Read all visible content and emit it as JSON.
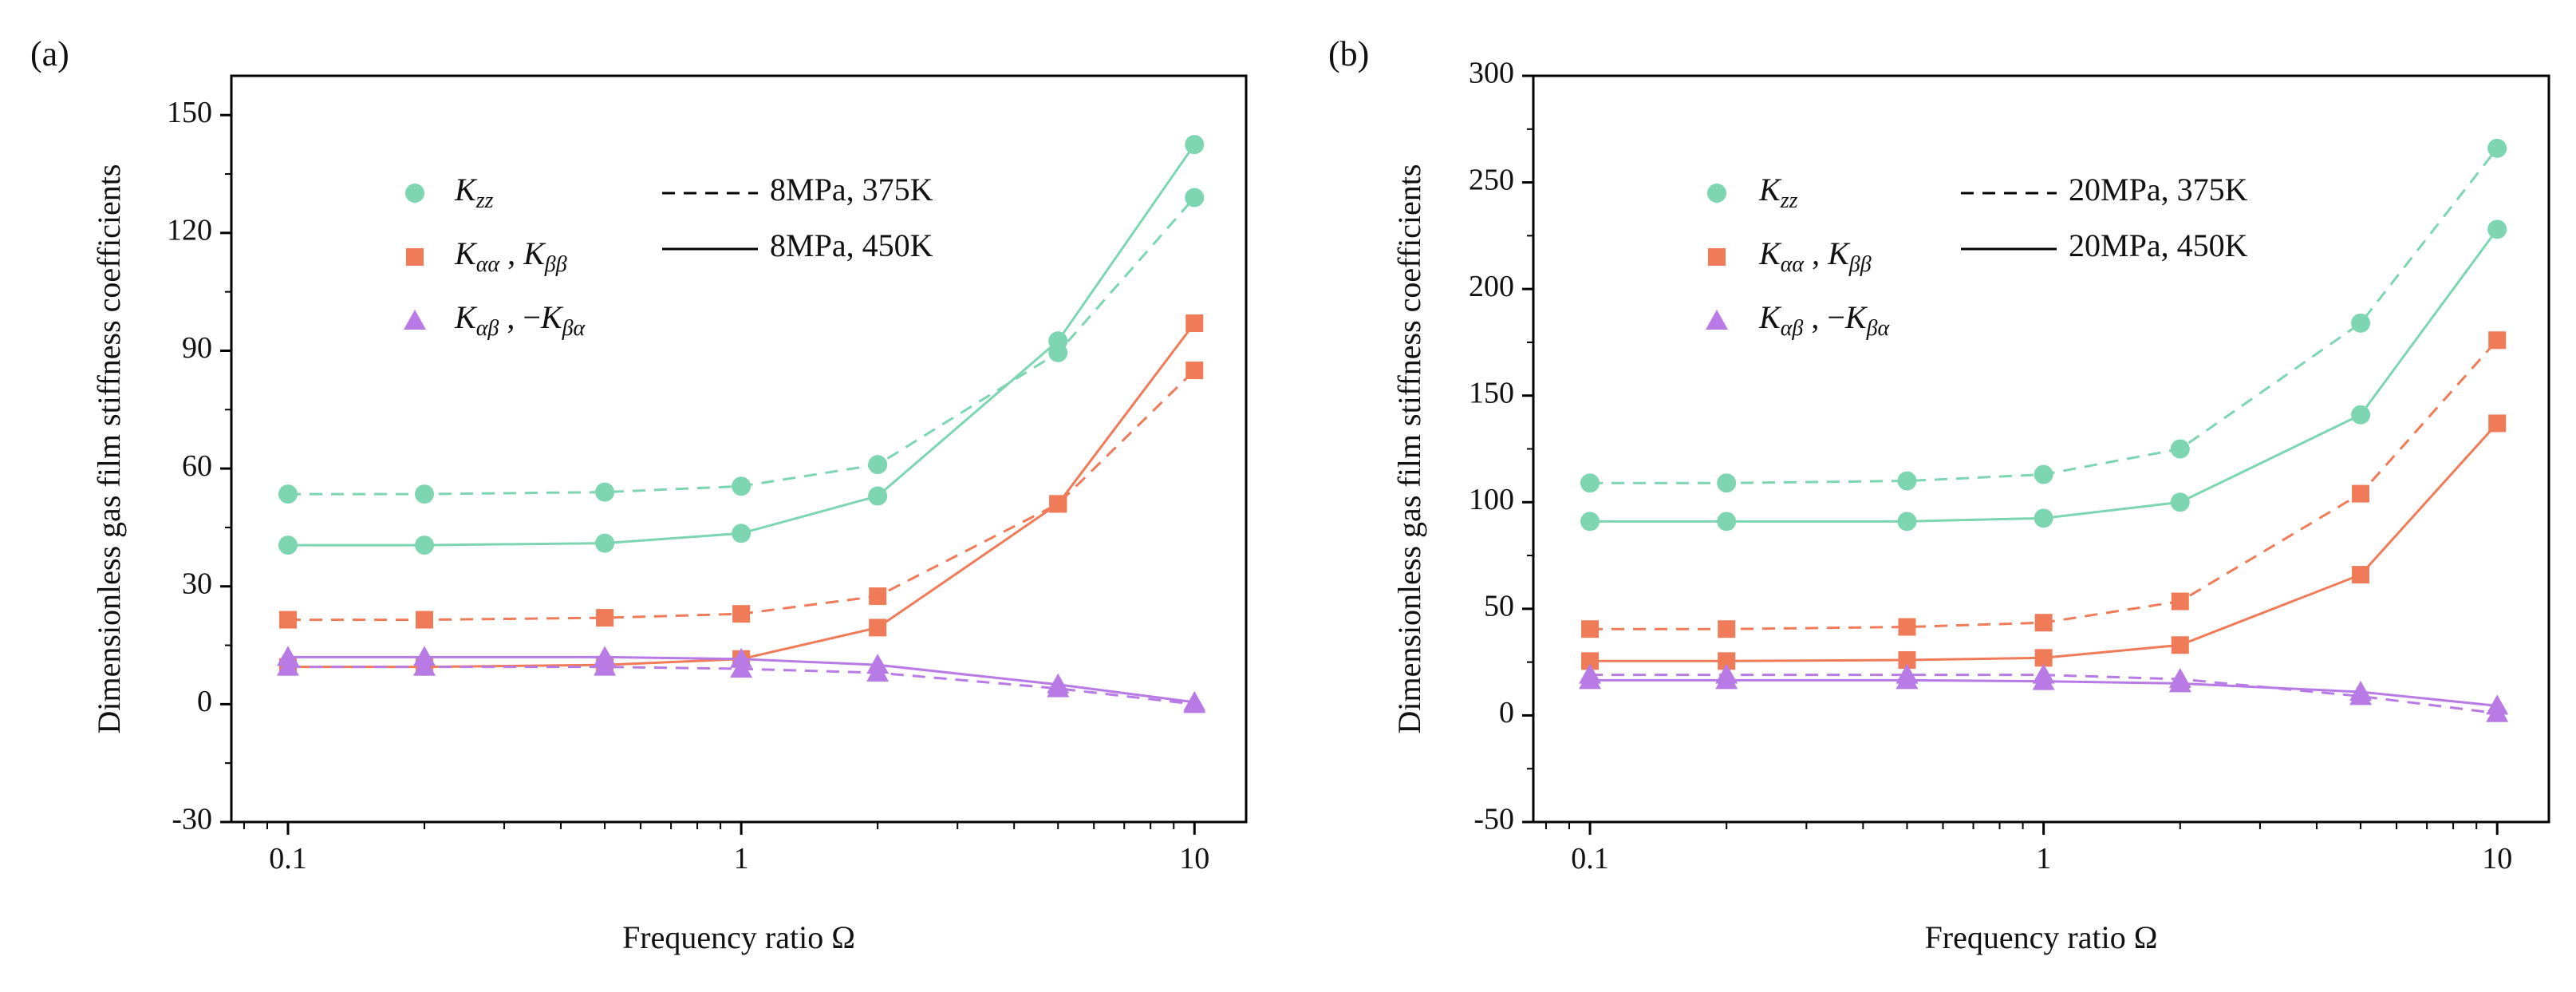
{
  "chart_data": [
    {
      "type": "line",
      "panel_label": "(a)",
      "xlabel": "Frequency ratio Ω",
      "ylabel": "Dimensionless gas film stiffness coefficients",
      "xscale": "log",
      "xlim": [
        0.075,
        13
      ],
      "ylim": [
        -30,
        160
      ],
      "yticks": [
        -30,
        0,
        30,
        60,
        90,
        120,
        150
      ],
      "xticks": [
        0.1,
        1,
        10
      ],
      "xtick_labels": [
        "0.1",
        "1",
        "10"
      ],
      "x": [
        0.1,
        0.2,
        0.5,
        1,
        2,
        5,
        10
      ],
      "legend_markers": [
        {
          "base": "K",
          "sub": "zz",
          "color": "#7dd6b1",
          "marker": "circle"
        },
        {
          "base": "K",
          "sub": "αα",
          "sep": " , ",
          "base2": "K",
          "sub2": "ββ",
          "color": "#ef7b59",
          "marker": "square"
        },
        {
          "base": "K",
          "sub": "αβ",
          "sep": " , −",
          "base2": "K",
          "sub2": "βα",
          "color": "#b87be6",
          "marker": "triangle"
        }
      ],
      "legend_lines": [
        {
          "label": "8MPa, 375K",
          "style": "dashed"
        },
        {
          "label": "8MPa, 450K",
          "style": "solid"
        }
      ],
      "series": [
        {
          "name": "Kzz 8MPa, 375K",
          "color": "#7dd6b1",
          "marker": "circle",
          "style": "dashed",
          "values": [
            53.5,
            53.5,
            54,
            55.5,
            61,
            89.5,
            129
          ]
        },
        {
          "name": "Kzz 8MPa, 450K",
          "color": "#7dd6b1",
          "marker": "circle",
          "style": "solid",
          "values": [
            40.5,
            40.5,
            41,
            43.5,
            53,
            92.5,
            142.5
          ]
        },
        {
          "name": "Kαα,Kββ 8MPa, 375K",
          "color": "#ef7b59",
          "marker": "square",
          "style": "dashed",
          "values": [
            21.5,
            21.5,
            22,
            23,
            27.5,
            51,
            85
          ]
        },
        {
          "name": "Kαα,Kββ 8MPa, 450K",
          "color": "#ef7b59",
          "marker": "square",
          "style": "solid",
          "values": [
            9.5,
            9.5,
            10,
            11.5,
            19.5,
            51,
            97
          ]
        },
        {
          "name": "Kαβ,−Kβα 8MPa, 375K",
          "color": "#b87be6",
          "marker": "triangle",
          "style": "dashed",
          "values": [
            9.5,
            9.5,
            9.5,
            9,
            8,
            4,
            0
          ]
        },
        {
          "name": "Kαβ,−Kβα 8MPa, 450K",
          "color": "#b87be6",
          "marker": "triangle",
          "style": "solid",
          "values": [
            12,
            12,
            12,
            11.5,
            10,
            5,
            0.5
          ]
        }
      ]
    },
    {
      "type": "line",
      "panel_label": "(b)",
      "xlabel": "Frequency ratio Ω",
      "ylabel": "Dimensionless gas film stiffness coefficients",
      "xscale": "log",
      "xlim": [
        0.075,
        13
      ],
      "ylim": [
        -50,
        300
      ],
      "yticks": [
        -50,
        0,
        50,
        100,
        150,
        200,
        250,
        300
      ],
      "xticks": [
        0.1,
        1,
        10
      ],
      "xtick_labels": [
        "0.1",
        "1",
        "10"
      ],
      "x": [
        0.1,
        0.2,
        0.5,
        1,
        2,
        5,
        10
      ],
      "legend_markers": [
        {
          "base": "K",
          "sub": "zz",
          "color": "#7dd6b1",
          "marker": "circle"
        },
        {
          "base": "K",
          "sub": "αα",
          "sep": " , ",
          "base2": "K",
          "sub2": "ββ",
          "color": "#ef7b59",
          "marker": "square"
        },
        {
          "base": "K",
          "sub": "αβ",
          "sep": " , −",
          "base2": "K",
          "sub2": "βα",
          "color": "#b87be6",
          "marker": "triangle"
        }
      ],
      "legend_lines": [
        {
          "label": "20MPa, 375K",
          "style": "dashed"
        },
        {
          "label": "20MPa, 450K",
          "style": "solid"
        }
      ],
      "series": [
        {
          "name": "Kzz 20MPa, 375K",
          "color": "#7dd6b1",
          "marker": "circle",
          "style": "dashed",
          "values": [
            109,
            109,
            110,
            113,
            125,
            184,
            266
          ]
        },
        {
          "name": "Kzz 20MPa, 450K",
          "color": "#7dd6b1",
          "marker": "circle",
          "style": "solid",
          "values": [
            91,
            91,
            91,
            92.5,
            100,
            141,
            228
          ]
        },
        {
          "name": "Kαα,Kββ 20MPa, 375K",
          "color": "#ef7b59",
          "marker": "square",
          "style": "dashed",
          "values": [
            40.5,
            40.5,
            41.5,
            43.5,
            53.5,
            104,
            176
          ]
        },
        {
          "name": "Kαα,Kββ 20MPa, 450K",
          "color": "#ef7b59",
          "marker": "square",
          "style": "solid",
          "values": [
            25.5,
            25.5,
            26,
            27,
            33,
            66,
            137
          ]
        },
        {
          "name": "Kαβ,−Kβα 20MPa, 375K",
          "color": "#b87be6",
          "marker": "triangle",
          "style": "dashed",
          "values": [
            19,
            19,
            19,
            19,
            17,
            9,
            1
          ]
        },
        {
          "name": "Kαβ,−Kβα 20MPa, 450K",
          "color": "#b87be6",
          "marker": "triangle",
          "style": "solid",
          "values": [
            16.5,
            16.5,
            16.5,
            16,
            15,
            11,
            4.5
          ]
        }
      ]
    }
  ]
}
